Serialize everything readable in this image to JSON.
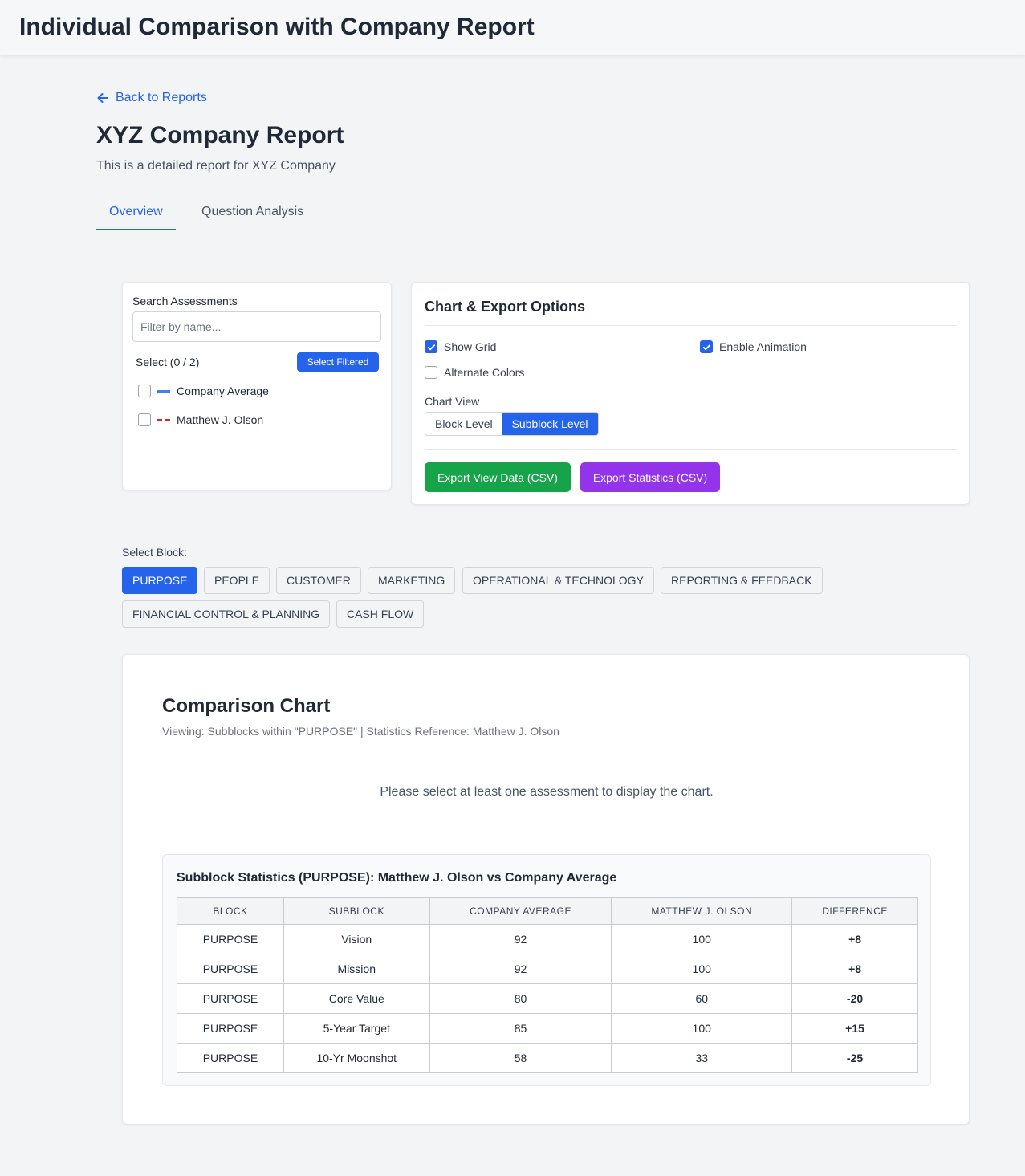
{
  "header": {
    "title": "Individual Comparison with Company Report"
  },
  "nav": {
    "back_label": "Back to Reports"
  },
  "report": {
    "title": "XYZ Company Report",
    "subtitle": "This is a detailed report for XYZ Company"
  },
  "tabs": [
    {
      "label": "Overview",
      "active": true
    },
    {
      "label": "Question Analysis",
      "active": false
    }
  ],
  "search": {
    "label": "Search Assessments",
    "placeholder": "Filter by name...",
    "select_count": "Select (0 / 2)",
    "select_filtered_label": "Select Filtered",
    "items": [
      {
        "label": "Company Average",
        "checked": false,
        "line": "solid-blue"
      },
      {
        "label": "Matthew J. Olson",
        "checked": false,
        "line": "dashed-red"
      }
    ]
  },
  "options": {
    "title": "Chart & Export Options",
    "show_grid": {
      "label": "Show Grid",
      "checked": true
    },
    "enable_animation": {
      "label": "Enable Animation",
      "checked": true
    },
    "alternate_colors": {
      "label": "Alternate Colors",
      "checked": false
    },
    "chart_view_label": "Chart View",
    "chart_views": [
      {
        "label": "Block Level",
        "active": false
      },
      {
        "label": "Subblock Level",
        "active": true
      }
    ],
    "export_view_label": "Export View Data (CSV)",
    "export_stats_label": "Export Statistics (CSV)"
  },
  "blocks": {
    "label": "Select Block:",
    "items": [
      {
        "label": "PURPOSE",
        "active": true
      },
      {
        "label": "PEOPLE",
        "active": false
      },
      {
        "label": "CUSTOMER",
        "active": false
      },
      {
        "label": "MARKETING",
        "active": false
      },
      {
        "label": "OPERATIONAL & TECHNOLOGY",
        "active": false
      },
      {
        "label": "REPORTING & FEEDBACK",
        "active": false
      },
      {
        "label": "FINANCIAL CONTROL & PLANNING",
        "active": false
      },
      {
        "label": "CASH FLOW",
        "active": false
      }
    ]
  },
  "chart": {
    "title": "Comparison Chart",
    "subtitle": "Viewing: Subblocks within \"PURPOSE\" | Statistics Reference: Matthew J. Olson",
    "empty_message": "Please select at least one assessment to display the chart."
  },
  "stats": {
    "title": "Subblock Statistics (PURPOSE): Matthew J. Olson vs Company Average",
    "headers": [
      "BLOCK",
      "SUBBLOCK",
      "COMPANY AVERAGE",
      "MATTHEW J. OLSON",
      "DIFFERENCE"
    ],
    "rows": [
      {
        "block": "PURPOSE",
        "subblock": "Vision",
        "company_avg": "92",
        "individual": "100",
        "diff": "+8"
      },
      {
        "block": "PURPOSE",
        "subblock": "Mission",
        "company_avg": "92",
        "individual": "100",
        "diff": "+8"
      },
      {
        "block": "PURPOSE",
        "subblock": "Core Value",
        "company_avg": "80",
        "individual": "60",
        "diff": "-20"
      },
      {
        "block": "PURPOSE",
        "subblock": "5-Year Target",
        "company_avg": "85",
        "individual": "100",
        "diff": "+15"
      },
      {
        "block": "PURPOSE",
        "subblock": "10-Yr Moonshot",
        "company_avg": "58",
        "individual": "33",
        "diff": "-25"
      }
    ]
  },
  "colors": {
    "primary": "#2563eb",
    "export_view": "#16a34a",
    "export_stats": "#9333ea",
    "positive": "#16a34a",
    "negative": "#dc2626"
  },
  "icons": {
    "back": "arrow-left-icon",
    "check": "check-icon"
  }
}
